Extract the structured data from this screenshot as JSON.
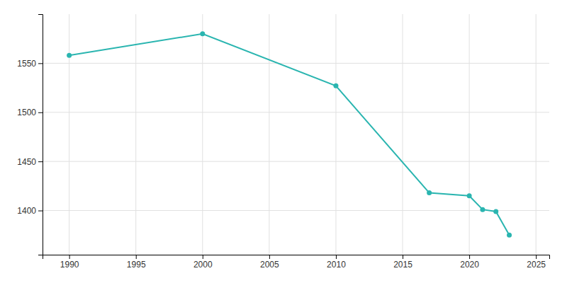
{
  "chart_data": {
    "type": "line",
    "x": [
      1990,
      2000,
      2010,
      2017,
      2020,
      2021,
      2022,
      2023
    ],
    "values": [
      1558,
      1580,
      1527,
      1418,
      1415,
      1401,
      1399,
      1375
    ],
    "color": "#2ab5b0",
    "marker": "circle",
    "xlim": [
      1988,
      2026
    ],
    "ylim": [
      1355,
      1600
    ],
    "xticks": [
      1990,
      1995,
      2000,
      2005,
      2010,
      2015,
      2020,
      2025
    ],
    "yticks": [
      1400,
      1450,
      1500,
      1550
    ],
    "grid": true
  }
}
